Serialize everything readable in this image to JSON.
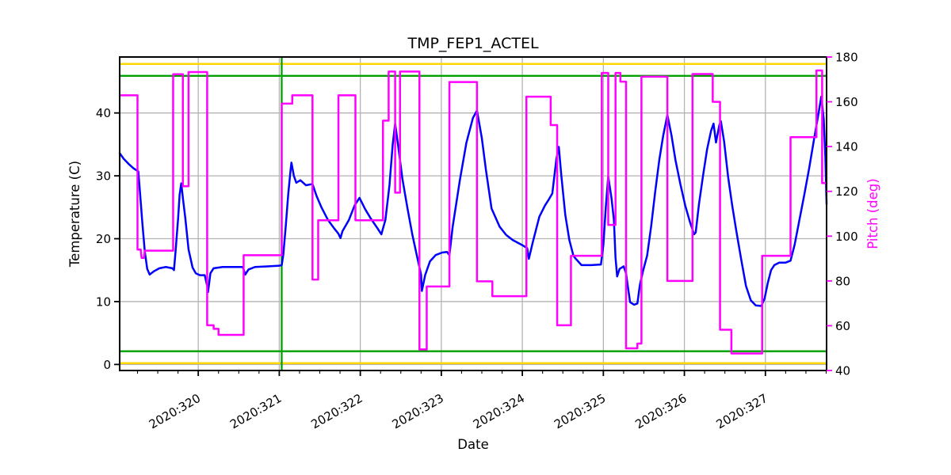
{
  "window": {
    "background": "#ffffff"
  },
  "chart_data": {
    "type": "line",
    "title": "TMP_FEP1_ACTEL",
    "xlabel": "Date",
    "ylabel_left": "Temperature (C)",
    "ylabel_right": "Pitch (deg)",
    "x_range": [
      319.03,
      327.755
    ],
    "x_major_ticks": [
      320,
      321,
      322,
      323,
      324,
      325,
      326,
      327
    ],
    "x_tick_labels": [
      "2020:320",
      "2020:321",
      "2020:322",
      "2020:323",
      "2020:324",
      "2020:325",
      "2020:326",
      "2020:327"
    ],
    "x_minor_tick_step": 0.25,
    "y_left": {
      "range": [
        -0.96,
        48.9
      ],
      "ticks": [
        0,
        10,
        20,
        30,
        40
      ],
      "tick_labels": [
        "0",
        "10",
        "20",
        "30",
        "40"
      ],
      "color": "#000000"
    },
    "y_right": {
      "range": [
        40,
        180
      ],
      "ticks": [
        40,
        60,
        80,
        100,
        120,
        140,
        160,
        180
      ],
      "tick_labels": [
        "40",
        "60",
        "80",
        "100",
        "120",
        "140",
        "160",
        "180"
      ],
      "color": "#ff00ff"
    },
    "grid": {
      "show": true,
      "color": "#b3b3b3"
    },
    "legend": "none",
    "limit_lines": [
      {
        "name": "yellow-high-limit",
        "axis": "left",
        "value": 47.8,
        "color": "#ffd700",
        "width": 2.5
      },
      {
        "name": "green-high-limit",
        "axis": "left",
        "value": 45.9,
        "color": "#00a000",
        "width": 2.3
      },
      {
        "name": "green-low-limit",
        "axis": "left",
        "value": 2.1,
        "color": "#00a000",
        "width": 2.3
      },
      {
        "name": "yellow-low-limit",
        "axis": "left",
        "value": 0.2,
        "color": "#ffd700",
        "width": 2.5
      }
    ],
    "vertical_lines": [
      {
        "name": "green-event-line",
        "x": 321.03,
        "color": "#00a000",
        "width": 2.3
      }
    ],
    "series": [
      {
        "name": "temperature",
        "axis": "left",
        "color": "#0000ff",
        "width": 2.5,
        "points": [
          [
            319.03,
            33.6
          ],
          [
            319.08,
            32.7
          ],
          [
            319.14,
            31.9
          ],
          [
            319.2,
            31.2
          ],
          [
            319.26,
            30.7
          ],
          [
            319.28,
            27.5
          ],
          [
            319.31,
            22.5
          ],
          [
            319.34,
            18.0
          ],
          [
            319.37,
            15.2
          ],
          [
            319.4,
            14.3
          ],
          [
            319.45,
            14.8
          ],
          [
            319.52,
            15.3
          ],
          [
            319.6,
            15.5
          ],
          [
            319.68,
            15.3
          ],
          [
            319.7,
            15.0
          ],
          [
            319.72,
            18.0
          ],
          [
            319.75,
            23.0
          ],
          [
            319.77,
            27.0
          ],
          [
            319.79,
            28.8
          ],
          [
            319.81,
            26.5
          ],
          [
            319.84,
            23.3
          ],
          [
            319.88,
            18.3
          ],
          [
            319.93,
            15.4
          ],
          [
            319.97,
            14.5
          ],
          [
            320.02,
            14.2
          ],
          [
            320.08,
            14.2
          ],
          [
            320.11,
            12.5
          ],
          [
            320.12,
            11.5
          ],
          [
            320.15,
            14.5
          ],
          [
            320.19,
            15.3
          ],
          [
            320.3,
            15.5
          ],
          [
            320.45,
            15.5
          ],
          [
            320.55,
            15.5
          ],
          [
            320.58,
            14.3
          ],
          [
            320.62,
            15.1
          ],
          [
            320.7,
            15.5
          ],
          [
            320.85,
            15.6
          ],
          [
            321.0,
            15.7
          ],
          [
            321.03,
            15.8
          ],
          [
            321.05,
            17.5
          ],
          [
            321.08,
            22.0
          ],
          [
            321.11,
            27.0
          ],
          [
            321.14,
            31.0
          ],
          [
            321.15,
            32.1
          ],
          [
            321.18,
            30.0
          ],
          [
            321.21,
            28.9
          ],
          [
            321.26,
            29.3
          ],
          [
            321.33,
            28.5
          ],
          [
            321.41,
            28.7
          ],
          [
            321.46,
            26.8
          ],
          [
            321.52,
            25.0
          ],
          [
            321.6,
            23.0
          ],
          [
            321.68,
            21.6
          ],
          [
            321.73,
            20.8
          ],
          [
            321.755,
            20.1
          ],
          [
            321.78,
            21.2
          ],
          [
            321.86,
            23.0
          ],
          [
            321.93,
            25.3
          ],
          [
            321.99,
            26.5
          ],
          [
            322.06,
            24.7
          ],
          [
            322.13,
            23.2
          ],
          [
            322.21,
            21.7
          ],
          [
            322.26,
            20.7
          ],
          [
            322.31,
            23.0
          ],
          [
            322.36,
            28.5
          ],
          [
            322.4,
            35.0
          ],
          [
            322.43,
            38.3
          ],
          [
            322.47,
            34.5
          ],
          [
            322.52,
            29.5
          ],
          [
            322.58,
            25.0
          ],
          [
            322.64,
            20.8
          ],
          [
            322.7,
            17.2
          ],
          [
            322.75,
            14.3
          ],
          [
            322.76,
            11.7
          ],
          [
            322.8,
            14.2
          ],
          [
            322.86,
            16.4
          ],
          [
            322.93,
            17.4
          ],
          [
            323.01,
            17.8
          ],
          [
            323.07,
            17.9
          ],
          [
            323.1,
            17.4
          ],
          [
            323.14,
            21.9
          ],
          [
            323.23,
            29.4
          ],
          [
            323.31,
            35.3
          ],
          [
            323.39,
            39.2
          ],
          [
            323.44,
            40.4
          ],
          [
            323.5,
            36.0
          ],
          [
            323.55,
            31.0
          ],
          [
            323.62,
            24.8
          ],
          [
            323.72,
            21.9
          ],
          [
            323.8,
            20.6
          ],
          [
            323.88,
            19.8
          ],
          [
            324.01,
            18.9
          ],
          [
            324.06,
            18.5
          ],
          [
            324.08,
            16.8
          ],
          [
            324.13,
            19.5
          ],
          [
            324.21,
            23.5
          ],
          [
            324.28,
            25.3
          ],
          [
            324.32,
            26.1
          ],
          [
            324.37,
            27.2
          ],
          [
            324.42,
            32.7
          ],
          [
            324.45,
            34.6
          ],
          [
            324.48,
            30.2
          ],
          [
            324.53,
            23.8
          ],
          [
            324.58,
            19.8
          ],
          [
            324.63,
            17.3
          ],
          [
            324.66,
            16.8
          ],
          [
            324.73,
            15.8
          ],
          [
            324.85,
            15.8
          ],
          [
            324.97,
            15.9
          ],
          [
            325.0,
            19.0
          ],
          [
            325.03,
            25.0
          ],
          [
            325.06,
            29.9
          ],
          [
            325.1,
            26.5
          ],
          [
            325.13,
            23.0
          ],
          [
            325.15,
            17.0
          ],
          [
            325.17,
            14.0
          ],
          [
            325.2,
            15.2
          ],
          [
            325.25,
            15.6
          ],
          [
            325.28,
            14.5
          ],
          [
            325.3,
            12.6
          ],
          [
            325.33,
            9.9
          ],
          [
            325.38,
            9.5
          ],
          [
            325.42,
            9.7
          ],
          [
            325.45,
            12.6
          ],
          [
            325.49,
            14.9
          ],
          [
            325.54,
            17.3
          ],
          [
            325.59,
            22.0
          ],
          [
            325.64,
            27.5
          ],
          [
            325.69,
            32.5
          ],
          [
            325.74,
            36.5
          ],
          [
            325.79,
            39.7
          ],
          [
            325.84,
            36.5
          ],
          [
            325.89,
            32.5
          ],
          [
            325.95,
            28.7
          ],
          [
            326.01,
            25.3
          ],
          [
            326.07,
            22.6
          ],
          [
            326.12,
            20.7
          ],
          [
            326.14,
            21.0
          ],
          [
            326.18,
            25.5
          ],
          [
            326.23,
            30.0
          ],
          [
            326.28,
            34.2
          ],
          [
            326.33,
            37.2
          ],
          [
            326.36,
            38.3
          ],
          [
            326.39,
            35.3
          ],
          [
            326.43,
            38.0
          ],
          [
            326.45,
            38.7
          ],
          [
            326.49,
            35.5
          ],
          [
            326.54,
            29.8
          ],
          [
            326.59,
            25.3
          ],
          [
            326.64,
            21.3
          ],
          [
            326.7,
            16.8
          ],
          [
            326.76,
            12.5
          ],
          [
            326.82,
            10.2
          ],
          [
            326.88,
            9.4
          ],
          [
            326.95,
            9.3
          ],
          [
            326.99,
            10.5
          ],
          [
            327.03,
            13.0
          ],
          [
            327.07,
            15.0
          ],
          [
            327.11,
            15.8
          ],
          [
            327.17,
            16.2
          ],
          [
            327.25,
            16.2
          ],
          [
            327.31,
            16.5
          ],
          [
            327.36,
            19.0
          ],
          [
            327.42,
            23.0
          ],
          [
            327.48,
            27.0
          ],
          [
            327.54,
            31.2
          ],
          [
            327.6,
            35.8
          ],
          [
            327.65,
            39.5
          ],
          [
            327.69,
            42.6
          ],
          [
            327.72,
            39.0
          ],
          [
            327.74,
            33.0
          ],
          [
            327.755,
            25.5
          ]
        ]
      },
      {
        "name": "pitch",
        "axis": "right",
        "color": "#ff00ff",
        "width": 2.5,
        "points": [
          [
            319.03,
            162.9
          ],
          [
            319.25,
            162.9
          ],
          [
            319.25,
            94.0
          ],
          [
            319.29,
            94.0
          ],
          [
            319.3,
            90.3
          ],
          [
            319.33,
            90.3
          ],
          [
            319.34,
            93.5
          ],
          [
            319.69,
            93.5
          ],
          [
            319.69,
            172.3
          ],
          [
            319.81,
            172.3
          ],
          [
            319.81,
            122.3
          ],
          [
            319.88,
            122.3
          ],
          [
            319.88,
            173.3
          ],
          [
            320.11,
            173.3
          ],
          [
            320.11,
            60.2
          ],
          [
            320.19,
            60.2
          ],
          [
            320.19,
            58.6
          ],
          [
            320.25,
            58.6
          ],
          [
            320.25,
            55.9
          ],
          [
            320.56,
            55.9
          ],
          [
            320.56,
            91.5
          ],
          [
            321.03,
            91.5
          ],
          [
            321.03,
            159.2
          ],
          [
            321.16,
            159.2
          ],
          [
            321.16,
            162.9
          ],
          [
            321.41,
            162.9
          ],
          [
            321.41,
            80.6
          ],
          [
            321.48,
            80.6
          ],
          [
            321.48,
            107.1
          ],
          [
            321.73,
            107.1
          ],
          [
            321.73,
            162.9
          ],
          [
            321.94,
            162.9
          ],
          [
            321.94,
            107.1
          ],
          [
            322.28,
            107.1
          ],
          [
            322.28,
            151.6
          ],
          [
            322.35,
            151.6
          ],
          [
            322.35,
            173.5
          ],
          [
            322.43,
            173.5
          ],
          [
            322.43,
            119.4
          ],
          [
            322.49,
            119.4
          ],
          [
            322.49,
            173.5
          ],
          [
            322.73,
            173.5
          ],
          [
            322.73,
            49.4
          ],
          [
            322.82,
            49.4
          ],
          [
            322.82,
            77.5
          ],
          [
            323.1,
            77.5
          ],
          [
            323.1,
            168.8
          ],
          [
            323.44,
            168.8
          ],
          [
            323.44,
            79.8
          ],
          [
            323.63,
            79.8
          ],
          [
            323.63,
            73.2
          ],
          [
            324.05,
            73.2
          ],
          [
            324.05,
            162.3
          ],
          [
            324.35,
            162.3
          ],
          [
            324.35,
            149.6
          ],
          [
            324.43,
            149.6
          ],
          [
            324.43,
            60.2
          ],
          [
            324.6,
            60.2
          ],
          [
            324.6,
            91.2
          ],
          [
            324.98,
            91.2
          ],
          [
            324.98,
            172.9
          ],
          [
            325.06,
            172.9
          ],
          [
            325.06,
            105.0
          ],
          [
            325.15,
            105.0
          ],
          [
            325.15,
            172.9
          ],
          [
            325.21,
            172.9
          ],
          [
            325.21,
            169.0
          ],
          [
            325.28,
            169.0
          ],
          [
            325.28,
            49.9
          ],
          [
            325.42,
            49.9
          ],
          [
            325.42,
            52.0
          ],
          [
            325.47,
            52.0
          ],
          [
            325.47,
            171.2
          ],
          [
            325.79,
            171.2
          ],
          [
            325.79,
            80.0
          ],
          [
            326.1,
            80.0
          ],
          [
            326.1,
            172.4
          ],
          [
            326.35,
            172.4
          ],
          [
            326.35,
            160.0
          ],
          [
            326.44,
            160.0
          ],
          [
            326.44,
            58.2
          ],
          [
            326.58,
            58.2
          ],
          [
            326.58,
            47.6
          ],
          [
            326.96,
            47.6
          ],
          [
            326.96,
            91.2
          ],
          [
            327.31,
            91.2
          ],
          [
            327.31,
            144.2
          ],
          [
            327.63,
            144.2
          ],
          [
            327.63,
            174.0
          ],
          [
            327.7,
            174.0
          ],
          [
            327.7,
            123.7
          ],
          [
            327.755,
            123.7
          ]
        ]
      }
    ]
  }
}
